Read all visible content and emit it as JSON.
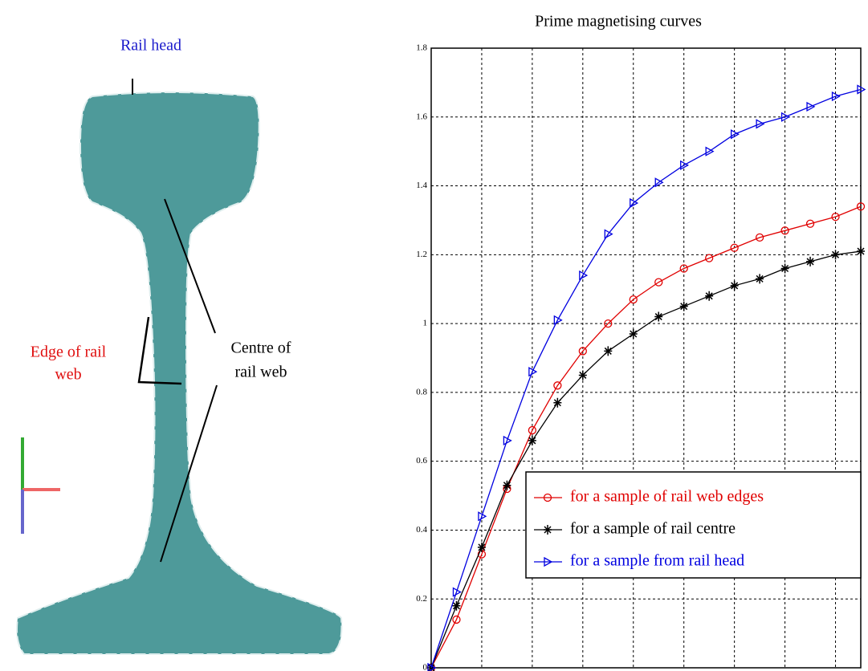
{
  "diagram": {
    "rail_head": "Rail head",
    "edge_label": [
      "Edge of rail",
      "web"
    ],
    "centre_label": [
      "Centre of",
      "rail web"
    ]
  },
  "chart_data": {
    "type": "line",
    "title": "Prime magnetising curves",
    "x": [
      0,
      1,
      2,
      3,
      4,
      5,
      6,
      7,
      8,
      9,
      10,
      11,
      12,
      13,
      14,
      15,
      16,
      17
    ],
    "series": [
      {
        "name": "for a sample of rail web edges",
        "color": "#e00000",
        "marker": "circle",
        "values": [
          0,
          0.14,
          0.33,
          0.52,
          0.69,
          0.82,
          0.92,
          1.0,
          1.07,
          1.12,
          1.16,
          1.19,
          1.22,
          1.25,
          1.27,
          1.29,
          1.31,
          1.34
        ]
      },
      {
        "name": "for a sample of rail centre",
        "color": "#000000",
        "marker": "star",
        "values": [
          0,
          0.18,
          0.35,
          0.53,
          0.66,
          0.77,
          0.85,
          0.92,
          0.97,
          1.02,
          1.05,
          1.08,
          1.11,
          1.13,
          1.16,
          1.18,
          1.2,
          1.21
        ]
      },
      {
        "name": "for a sample from rail head",
        "color": "#0000e0",
        "marker": "triangle-right",
        "values": [
          0,
          0.22,
          0.44,
          0.66,
          0.86,
          1.01,
          1.14,
          1.26,
          1.35,
          1.41,
          1.46,
          1.5,
          1.55,
          1.58,
          1.6,
          1.63,
          1.66,
          1.68
        ]
      }
    ],
    "xlim": [
      0,
      17
    ],
    "xticks": [
      0,
      2,
      4,
      6,
      8,
      10,
      12,
      14,
      16
    ],
    "ylim": [
      0,
      1.8
    ],
    "yticks": [
      0,
      0.2,
      0.4,
      0.6,
      0.8,
      1,
      1.2,
      1.4,
      1.6,
      1.8
    ],
    "grid": true,
    "legend": "lower right"
  }
}
